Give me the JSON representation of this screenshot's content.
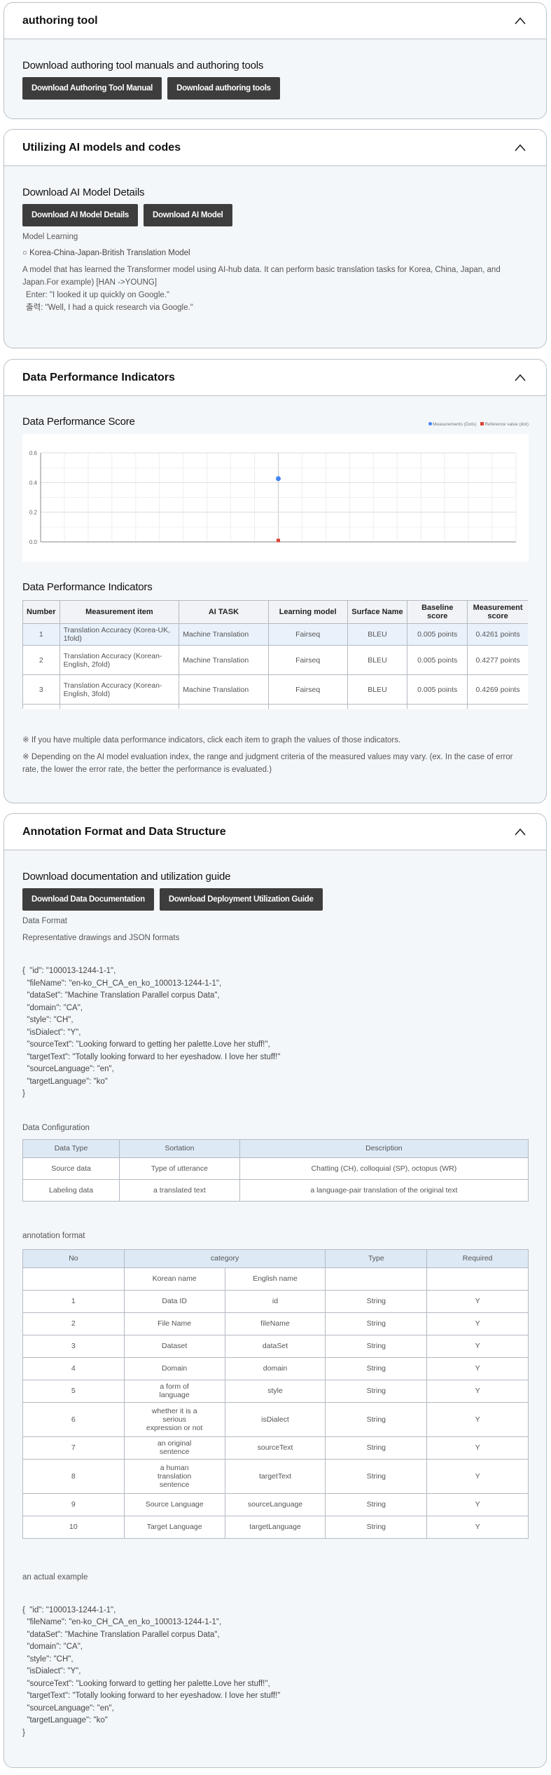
{
  "sections": {
    "authoring": {
      "title": "authoring tool",
      "heading": "Download authoring tool manuals and authoring tools",
      "buttons": [
        "Download Authoring Tool Manual",
        "Download authoring tools"
      ]
    },
    "ai_models": {
      "title": "Utilizing AI models and codes",
      "heading": "Download AI Model Details",
      "buttons": [
        "Download AI Model Details",
        "Download AI Model"
      ],
      "model_learning_label": "Model Learning",
      "model_name": "○ Korea-China-Japan-British Translation Model",
      "description": "A model that has learned the Transformer model using AI-hub data. It can perform basic translation tasks for Korea, China, Japan, and Japan.For example) [HAN ->YOUNG]",
      "enter_line": "Enter: \"I looked it up quickly on Google.\"",
      "output_line": "출력: \"Well, I had a quick research via Google.\""
    },
    "performance": {
      "title": "Data Performance Indicators",
      "score_heading": "Data Performance Score",
      "table_heading": "Data Performance Indicators",
      "columns": [
        "Number",
        "Measurement item",
        "AI TASK",
        "Learning model",
        "Surface Name",
        "Baseline score",
        "Measurement score"
      ],
      "rows": [
        [
          "1",
          "Translation Accuracy (Korea-UK, 1fold)",
          "Machine Translation",
          "Fairseq",
          "BLEU",
          "0.005 points",
          "0.4261 points"
        ],
        [
          "2",
          "Translation Accuracy (Korean-English, 2fold)",
          "Machine Translation",
          "Fairseq",
          "BLEU",
          "0.005 points",
          "0.4277 points"
        ],
        [
          "3",
          "Translation Accuracy (Korean-English, 3fold)",
          "Machine Translation",
          "Fairseq",
          "BLEU",
          "0.005 points",
          "0.4269 points"
        ]
      ],
      "notes": [
        "※ If you have multiple data performance indicators, click each item to graph the values of those indicators.",
        "※ Depending on the AI model evaluation index, the range and judgment criteria of the measured values may vary. (ex. In the case of error rate, the lower the error rate, the better the performance is evaluated.)"
      ]
    },
    "annotation": {
      "title": "Annotation Format and Data Structure",
      "heading": "Download documentation and utilization guide",
      "buttons": [
        "Download Data Documentation",
        "Download Deployment Utilization Guide"
      ],
      "data_format_label": "Data Format",
      "representative_label": "Representative drawings and JSON formats",
      "json_lines": [
        "{  \"id\": \"100013-1244-1-1\",",
        "  \"fileName\": \"en-ko_CH_CA_en_ko_100013-1244-1-1\",",
        "  \"dataSet\": \"Machine Translation Parallel corpus Data\",",
        "  \"domain\": \"CA\",",
        "  \"style\": \"CH\",",
        "  \"isDialect\": \"Y\",",
        "  \"sourceText\": \"Looking forward to getting her palette.Love her stuff!\",",
        "  \"targetText\": \"Totally looking forward to her eyeshadow. I love her stuff!\"",
        "  \"sourceLanguage\": \"en\",",
        "  \"targetLanguage\": \"ko\"",
        "}"
      ],
      "config_label": "Data Configuration",
      "config_columns": [
        "Data Type",
        "Sortation",
        "Description"
      ],
      "config_rows": [
        [
          "Source data",
          "Type of utterance",
          "Chatting (CH), colloquial (SP), octopus (WR)"
        ],
        [
          "Labeling data",
          "a translated text",
          "a language-pair translation of the original text"
        ]
      ],
      "format_label": "annotation format",
      "format_columns": [
        "No",
        "category",
        "Type",
        "Required"
      ],
      "format_subcolumns": [
        "Korean name",
        "English name"
      ],
      "format_rows": [
        [
          "1",
          "Data ID",
          "id",
          "String",
          "Y"
        ],
        [
          "2",
          "File Name",
          "fileName",
          "String",
          "Y"
        ],
        [
          "3",
          "Dataset",
          "dataSet",
          "String",
          "Y"
        ],
        [
          "4",
          "Domain",
          "domain",
          "String",
          "Y"
        ],
        [
          "5",
          "a form of language",
          "style",
          "String",
          "Y"
        ],
        [
          "6",
          "whether it is a serious expression or not",
          "isDialect",
          "String",
          "Y"
        ],
        [
          "7",
          "an original sentence",
          "sourceText",
          "String",
          "Y"
        ],
        [
          "8",
          "a human translation sentence",
          "targetText",
          "String",
          "Y"
        ],
        [
          "9",
          "Source Language",
          "sourceLanguage",
          "String",
          "Y"
        ],
        [
          "10",
          "Target Language",
          "targetLanguage",
          "String",
          "Y"
        ]
      ],
      "example_label": "an actual example"
    }
  },
  "chart_data": {
    "type": "scatter",
    "title": "",
    "ylim": [
      0,
      0.6
    ],
    "y_ticks": [
      "0.0",
      "0.2",
      "0.4",
      "0.6"
    ],
    "grid": true,
    "legend_position": "top-right",
    "series": [
      {
        "name": "Measurements (Dots)",
        "values": [
          0.4261
        ],
        "color": "#4285f4",
        "marker": "circle"
      },
      {
        "name": "Reference value (dot)",
        "values": [
          0.005
        ],
        "color": "#db4437",
        "marker": "square"
      }
    ]
  },
  "colors": {
    "button": "#3d3d3d",
    "card_bg": "#f4f7fa",
    "table_header": "#dde9f5",
    "selected_row": "#e9f1fb"
  }
}
